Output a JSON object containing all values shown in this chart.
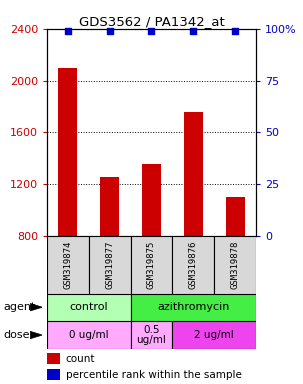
{
  "title": "GDS3562 / PA1342_at",
  "samples": [
    "GSM319874",
    "GSM319877",
    "GSM319875",
    "GSM319876",
    "GSM319878"
  ],
  "counts": [
    2100,
    1260,
    1360,
    1760,
    1100
  ],
  "percentiles": [
    99,
    99,
    99,
    99,
    99
  ],
  "ylim_left": [
    800,
    2400
  ],
  "ylim_right": [
    0,
    100
  ],
  "yticks_left": [
    800,
    1200,
    1600,
    2000,
    2400
  ],
  "yticks_right": [
    0,
    25,
    50,
    75,
    100
  ],
  "bar_color": "#cc0000",
  "dot_color": "#0000cc",
  "bar_width": 0.45,
  "agent_colors": [
    "#b3ffb3",
    "#44ee44"
  ],
  "dose_colors": [
    "#ffaaff",
    "#ffaaff",
    "#ee44ee"
  ],
  "legend_count_color": "#cc0000",
  "legend_percentile_color": "#0000cc",
  "tick_color_left": "#cc0000",
  "tick_color_right": "#0000cc",
  "bg_color": "#d8d8d8",
  "right_tick_label_100": "100%"
}
